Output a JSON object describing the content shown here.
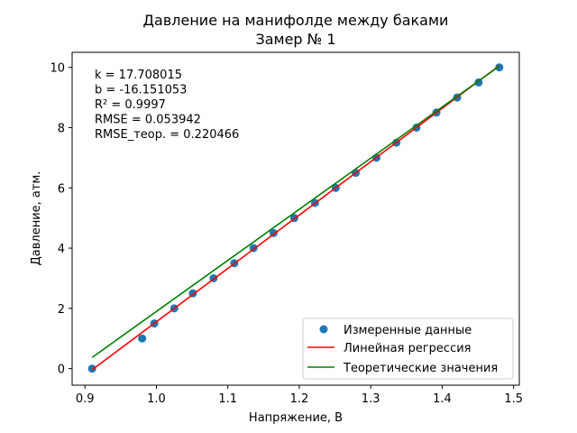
{
  "chart_data": {
    "type": "scatter",
    "title": "Давление на манифолде между баками",
    "subtitle": "Замер № 1",
    "xlabel": "Напряжение, В",
    "ylabel": "Давление, атм.",
    "xlim": [
      0.882,
      1.508
    ],
    "ylim": [
      -0.55,
      10.5
    ],
    "xticks": [
      0.9,
      1.0,
      1.1,
      1.2,
      1.3,
      1.4,
      1.5
    ],
    "yticks": [
      0,
      2,
      4,
      6,
      8,
      10
    ],
    "xtick_labels": [
      "0.9",
      "1.0",
      "1.1",
      "1.2",
      "1.3",
      "1.4",
      "1.5"
    ],
    "ytick_labels": [
      "0",
      "2",
      "4",
      "6",
      "8",
      "10"
    ],
    "grid": false,
    "legend_position": "bottom-right",
    "annotations": [
      "k = 17.708015",
      "b = -16.151053",
      "R² = 0.9997",
      "RMSE = 0.053942",
      "RMSE_теор. = 0.220466"
    ],
    "series": [
      {
        "name": "Измеренные данные",
        "kind": "scatter",
        "color": "#1f77b4",
        "x": [
          0.91,
          0.98,
          0.997,
          1.025,
          1.051,
          1.08,
          1.109,
          1.136,
          1.164,
          1.193,
          1.222,
          1.251,
          1.279,
          1.308,
          1.336,
          1.364,
          1.392,
          1.421,
          1.451,
          1.48
        ],
        "y": [
          0,
          1.0,
          1.5,
          2.0,
          2.5,
          3.0,
          3.5,
          4.0,
          4.5,
          5.0,
          5.5,
          6.0,
          6.5,
          7.0,
          7.5,
          8.0,
          8.5,
          9.0,
          9.5,
          10.0
        ]
      },
      {
        "name": "Линейная регрессия",
        "kind": "line",
        "color": "#ff0000",
        "x": [
          0.91,
          1.48
        ],
        "y": [
          -0.037,
          10.057
        ]
      },
      {
        "name": "Теоретические значения",
        "kind": "line",
        "color": "#008000",
        "x": [
          0.91,
          1.48
        ],
        "y": [
          0.37,
          10.04
        ]
      }
    ]
  }
}
